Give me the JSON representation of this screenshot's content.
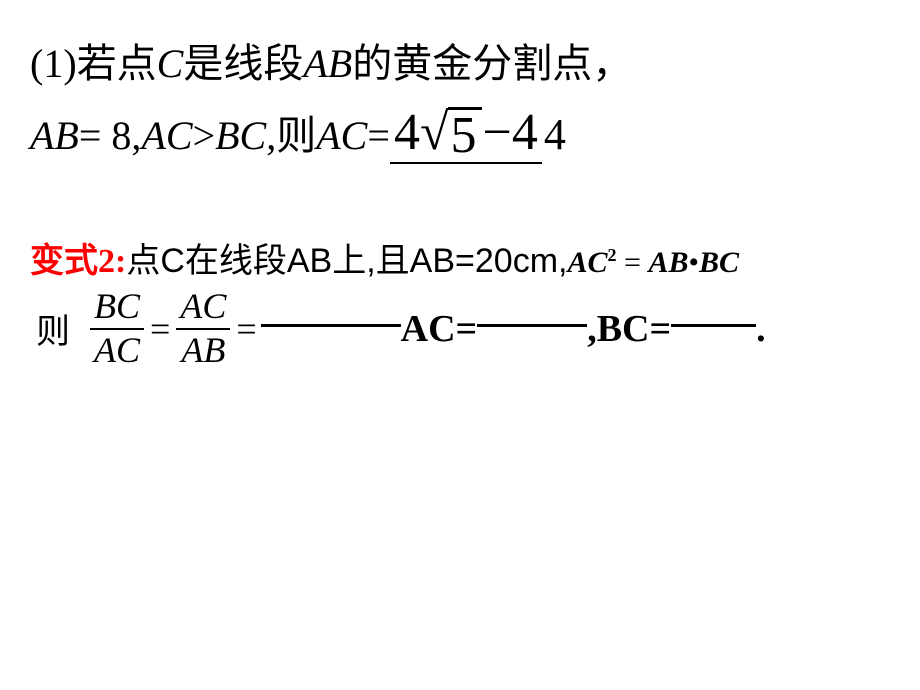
{
  "problem1": {
    "prefix": "(1)",
    "text_part1_cn": "若点",
    "C": "C",
    "text_part2_cn": "是线段",
    "AB": "AB",
    "text_part3_cn": "的黄金分割点",
    "comma": "，",
    "line2_AB": "AB",
    "line2_eq": " = 8, ",
    "line2_AC": "AC",
    "line2_gt": " > ",
    "line2_BC": "BC",
    "line2_comma": ",",
    "line2_ze": "则",
    "line2_AC2": "AC",
    "line2_eq2": " = ",
    "ans_4a": "4",
    "ans_root5": "5",
    "ans_minus": " − ",
    "ans_4b": "4",
    "trailing": "4"
  },
  "problem2": {
    "label_cn": "变式",
    "label_num": "2:",
    "row1_cn1": "点C在线段AB上,且AB=20cm,",
    "eq_AC": "AC",
    "eq_sq": "2",
    "eq_rest_eq": " = ",
    "eq_AB": "AB",
    "eq_dot": "•",
    "eq_BC": "BC",
    "ze": "则",
    "frac1_num": "BC",
    "frac1_den": "AC",
    "frac2_num": "AC",
    "frac2_den": "AB",
    "eq": "=",
    "after_AC": "AC=",
    "after_comma": ",",
    "after_BC": "BC=",
    "period": "."
  }
}
